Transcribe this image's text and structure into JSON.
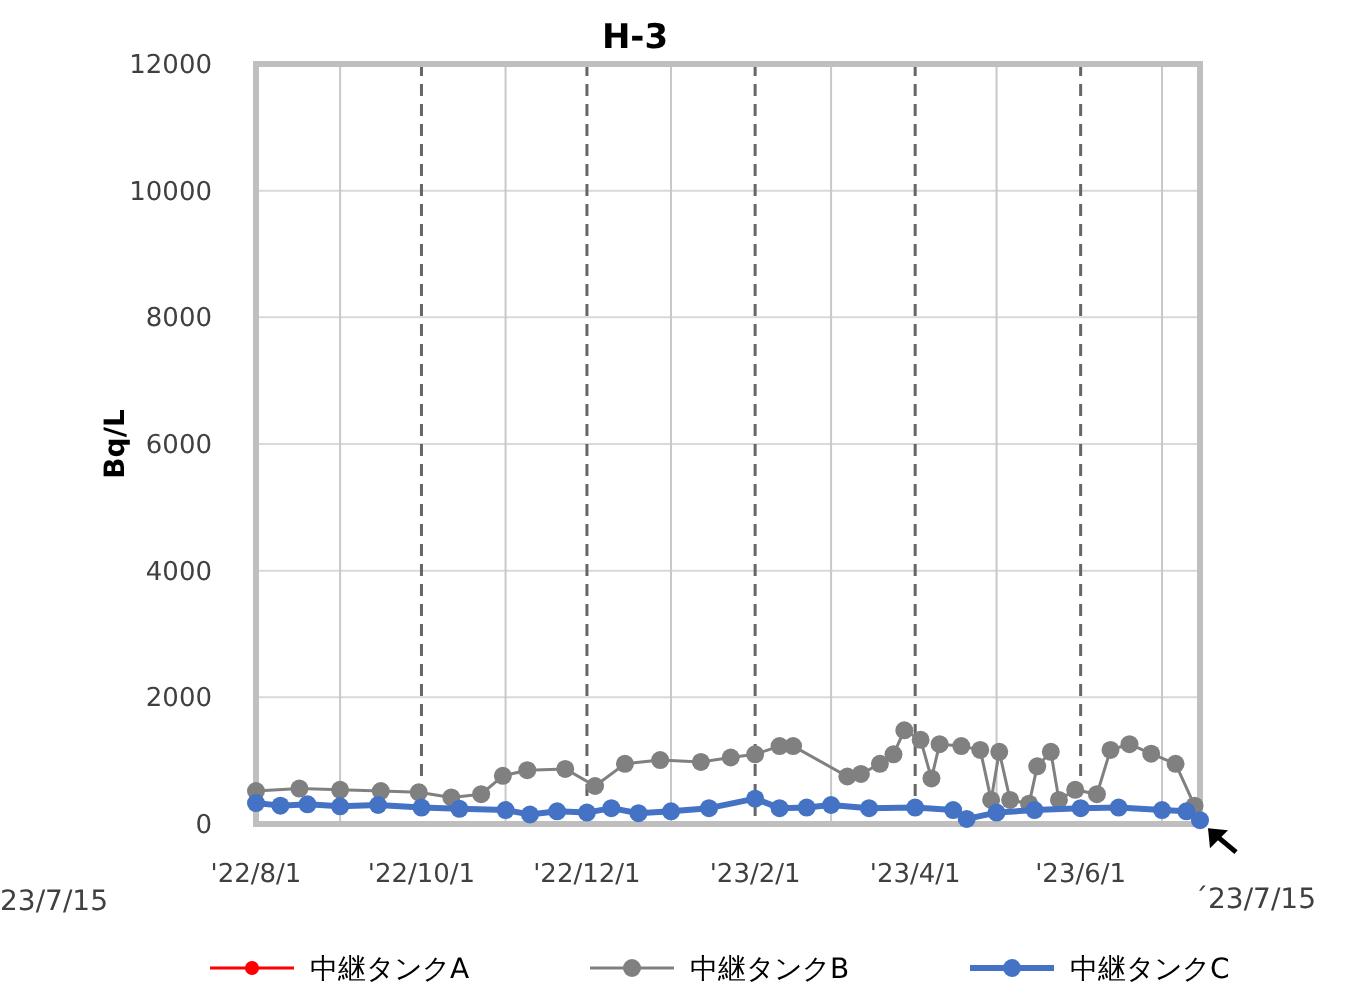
{
  "chart_data": {
    "type": "line",
    "title": "H-3",
    "ylabel": "Bq/L",
    "xlim": [
      "2022-08-01",
      "2023-07-15"
    ],
    "xticks": [
      {
        "value": "2022-08-01",
        "label": "'22/8/1"
      },
      {
        "value": "2022-09-01",
        "label": null
      },
      {
        "value": "2022-10-01",
        "label": "'22/10/1"
      },
      {
        "value": "2022-11-01",
        "label": null
      },
      {
        "value": "2022-12-01",
        "label": "'22/12/1"
      },
      {
        "value": "2023-01-01",
        "label": null
      },
      {
        "value": "2023-02-01",
        "label": "'23/2/1"
      },
      {
        "value": "2023-03-01",
        "label": null
      },
      {
        "value": "2023-04-01",
        "label": "'23/4/1"
      },
      {
        "value": "2023-05-01",
        "label": null
      },
      {
        "value": "2023-06-01",
        "label": "'23/6/1"
      },
      {
        "value": "2023-07-01",
        "label": null
      }
    ],
    "ylim": [
      0,
      12000
    ],
    "yticks": [
      0,
      2000,
      4000,
      6000,
      8000,
      10000,
      12000
    ],
    "grid": true,
    "legend": "bottom",
    "marker": "circle",
    "line_style": "solid",
    "annotations": [
      "23/7/15",
      {
        "text": "´23/7/15",
        "x": "2023-07-15",
        "y": 60
      }
    ],
    "series": [
      {
        "name": "中継タンクA",
        "color": "#ff0000"
      },
      {
        "name": "中継タンクB",
        "color": "#808080",
        "x": [
          "2022-08-01",
          "2022-08-17",
          "2022-09-01",
          "2022-09-16",
          "2022-09-30",
          "2022-10-12",
          "2022-10-23",
          "2022-10-31",
          "2022-11-09",
          "2022-11-23",
          "2022-12-04",
          "2022-12-15",
          "2022-12-28",
          "2023-01-12",
          "2023-01-23",
          "2023-02-01",
          "2023-02-10",
          "2023-02-15",
          "2023-03-07",
          "2023-03-12",
          "2023-03-19",
          "2023-03-24",
          "2023-03-28",
          "2023-04-03",
          "2023-04-07",
          "2023-04-10",
          "2023-04-18",
          "2023-04-25",
          "2023-04-29",
          "2023-05-02",
          "2023-05-06",
          "2023-05-13",
          "2023-05-16",
          "2023-05-21",
          "2023-05-24",
          "2023-05-30",
          "2023-06-07",
          "2023-06-12",
          "2023-06-19",
          "2023-06-27",
          "2023-07-06",
          "2023-07-13"
        ],
        "values": [
          520,
          560,
          540,
          520,
          500,
          420,
          470,
          760,
          850,
          870,
          600,
          950,
          1010,
          980,
          1050,
          1100,
          1230,
          1230,
          750,
          790,
          950,
          1100,
          1480,
          1330,
          720,
          1260,
          1230,
          1170,
          380,
          1140,
          380,
          320,
          910,
          1140,
          380,
          540,
          470,
          1170,
          1260,
          1110,
          950,
          290
        ]
      },
      {
        "name": "中継タンクC",
        "color": "#4472c4",
        "x": [
          "2022-08-01",
          "2022-08-10",
          "2022-08-20",
          "2022-09-01",
          "2022-09-15",
          "2022-10-01",
          "2022-10-15",
          "2022-11-01",
          "2022-11-10",
          "2022-11-20",
          "2022-12-01",
          "2022-12-10",
          "2022-12-20",
          "2023-01-01",
          "2023-01-15",
          "2023-02-01",
          "2023-02-10",
          "2023-02-20",
          "2023-03-01",
          "2023-03-15",
          "2023-04-01",
          "2023-04-15",
          "2023-04-20",
          "2023-05-01",
          "2023-05-15",
          "2023-06-01",
          "2023-06-15",
          "2023-07-01",
          "2023-07-10",
          "2023-07-15"
        ],
        "values": [
          330,
          290,
          310,
          280,
          300,
          260,
          240,
          220,
          150,
          200,
          180,
          250,
          170,
          200,
          250,
          400,
          250,
          260,
          300,
          250,
          260,
          220,
          80,
          180,
          220,
          250,
          260,
          220,
          200,
          60
        ]
      }
    ]
  }
}
